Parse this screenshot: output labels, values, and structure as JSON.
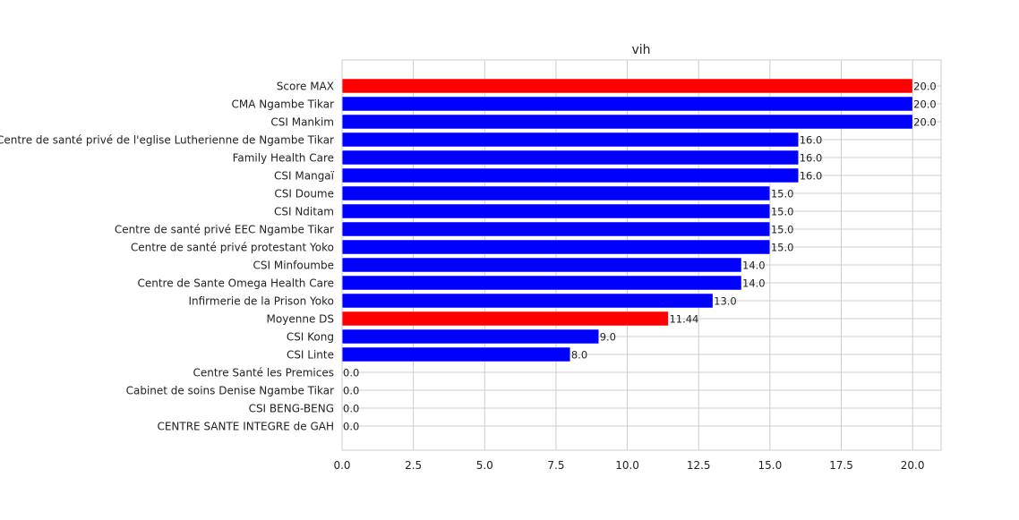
{
  "chart_data": {
    "type": "bar",
    "orientation": "horizontal",
    "title": "vih",
    "xlabel": "",
    "ylabel": "",
    "xlim": [
      0,
      21
    ],
    "xticks": [
      0.0,
      2.5,
      5.0,
      7.5,
      10.0,
      12.5,
      15.0,
      17.5,
      20.0
    ],
    "xtick_labels": [
      "0.0",
      "2.5",
      "5.0",
      "7.5",
      "10.0",
      "12.5",
      "15.0",
      "17.5",
      "20.0"
    ],
    "grid": true,
    "legend": "none",
    "categories": [
      "Score MAX",
      "CMA Ngambe Tikar",
      "CSI Mankim",
      "Centre de santé privé  de l'eglise Lutherienne de Ngambe Tikar",
      "Family Health Care",
      "CSI Mangaï",
      "CSI Doume",
      "CSI Nditam",
      "Centre de santé privé EEC Ngambe Tikar",
      "Centre de santé privé protestant Yoko",
      "CSI Minfoumbe",
      "Centre de Sante Omega Health  Care",
      "Infirmerie de la Prison Yoko",
      "Moyenne DS",
      "CSI Kong",
      "CSI Linte",
      "Centre Santé les Premices",
      "Cabinet de soins Denise Ngambe Tikar",
      "CSI BENG-BENG",
      "CENTRE SANTE INTEGRE  de GAH"
    ],
    "values": [
      20.0,
      20.0,
      20.0,
      16.0,
      16.0,
      16.0,
      15.0,
      15.0,
      15.0,
      15.0,
      14.0,
      14.0,
      13.0,
      11.44,
      9.0,
      8.0,
      0.0,
      0.0,
      0.0,
      0.0
    ],
    "value_labels": [
      "20.0",
      "20.0",
      "20.0",
      "16.0",
      "16.0",
      "16.0",
      "15.0",
      "15.0",
      "15.0",
      "15.0",
      "14.0",
      "14.0",
      "13.0",
      "11.44",
      "9.0",
      "8.0",
      "0.0",
      "0.0",
      "0.0",
      "0.0"
    ],
    "colors": [
      "#ff0000",
      "#0000ff",
      "#0000ff",
      "#0000ff",
      "#0000ff",
      "#0000ff",
      "#0000ff",
      "#0000ff",
      "#0000ff",
      "#0000ff",
      "#0000ff",
      "#0000ff",
      "#0000ff",
      "#ff0000",
      "#0000ff",
      "#0000ff",
      "#0000ff",
      "#0000ff",
      "#0000ff",
      "#0000ff"
    ]
  }
}
